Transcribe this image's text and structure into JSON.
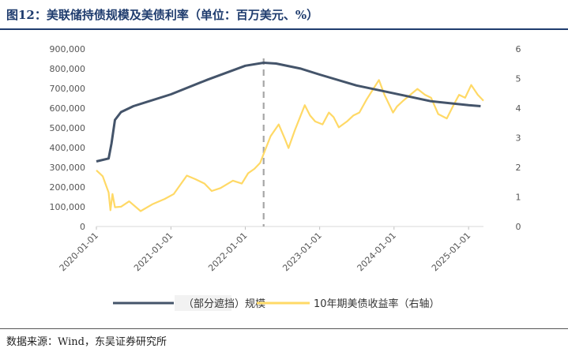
{
  "header": {
    "title": "图12：美联储持债规模及美债利率（单位：百万美元、%）"
  },
  "footer": {
    "source": "数据来源：Wind，东吴证券研究所"
  },
  "colors": {
    "holdings": "#44546a",
    "yield": "#ffd966",
    "title": "#1f3c6e",
    "divider": "#a6a6a6"
  },
  "chart_data": {
    "type": "line",
    "x_tick_labels": [
      "2020-01-01",
      "2021-01-01",
      "2022-01-01",
      "2023-01-01",
      "2024-01-01",
      "2025-01-01"
    ],
    "x_range": [
      "2020-01-01",
      "2025-03-15"
    ],
    "left_axis": {
      "ylim": [
        0,
        900000
      ],
      "ticks": [
        "0",
        "100,000",
        "200,000",
        "300,000",
        "400,000",
        "500,000",
        "600,000",
        "700,000",
        "800,000",
        "900,000"
      ]
    },
    "right_axis": {
      "ylim": [
        0,
        6
      ],
      "ticks": [
        "0",
        "1",
        "2",
        "3",
        "4",
        "5",
        "6"
      ]
    },
    "vertical_marker_x": "2022-04-01",
    "grid": false,
    "legend_position": "bottom",
    "series": [
      {
        "name": "（部分遮挡）规模",
        "axis": "left",
        "x": [
          "2020-01-01",
          "2020-03-01",
          "2020-03-15",
          "2020-04-01",
          "2020-05-01",
          "2020-07-01",
          "2021-01-01",
          "2021-07-01",
          "2022-01-01",
          "2022-04-01",
          "2022-06-01",
          "2022-10-01",
          "2023-01-01",
          "2023-07-01",
          "2024-01-01",
          "2024-07-01",
          "2025-01-01",
          "2025-03-01"
        ],
        "values": [
          330000,
          345000,
          420000,
          540000,
          580000,
          610000,
          670000,
          745000,
          815000,
          830000,
          826000,
          800000,
          770000,
          715000,
          675000,
          635000,
          615000,
          610000
        ]
      },
      {
        "name": "10年期美债收益率（右轴）",
        "axis": "right",
        "x": [
          "2020-01-01",
          "2020-02-01",
          "2020-03-01",
          "2020-03-10",
          "2020-03-20",
          "2020-04-01",
          "2020-05-01",
          "2020-06-10",
          "2020-08-05",
          "2020-10-01",
          "2020-12-01",
          "2021-01-15",
          "2021-03-20",
          "2021-05-01",
          "2021-06-15",
          "2021-07-20",
          "2021-09-01",
          "2021-11-01",
          "2021-12-15",
          "2022-01-15",
          "2022-02-15",
          "2022-03-15",
          "2022-04-01",
          "2022-05-05",
          "2022-06-14",
          "2022-07-15",
          "2022-08-01",
          "2022-09-01",
          "2022-10-20",
          "2022-11-15",
          "2022-12-10",
          "2023-01-15",
          "2023-02-15",
          "2023-03-10",
          "2023-04-05",
          "2023-05-15",
          "2023-06-15",
          "2023-07-15",
          "2023-08-20",
          "2023-10-19",
          "2023-11-15",
          "2023-12-27",
          "2024-01-15",
          "2024-02-15",
          "2024-04-25",
          "2024-06-01",
          "2024-07-01",
          "2024-08-05",
          "2024-09-16",
          "2024-10-15",
          "2024-11-15",
          "2024-12-15",
          "2025-01-14",
          "2025-02-15",
          "2025-03-15"
        ],
        "values": [
          1.9,
          1.7,
          1.15,
          0.55,
          1.1,
          0.65,
          0.67,
          0.85,
          0.52,
          0.75,
          0.93,
          1.1,
          1.72,
          1.6,
          1.45,
          1.2,
          1.3,
          1.55,
          1.45,
          1.8,
          1.95,
          2.15,
          2.45,
          3.05,
          3.45,
          2.95,
          2.65,
          3.25,
          4.1,
          3.75,
          3.55,
          3.45,
          3.85,
          3.7,
          3.35,
          3.55,
          3.75,
          3.85,
          4.3,
          4.95,
          4.45,
          3.85,
          4.05,
          4.25,
          4.65,
          4.45,
          4.35,
          3.8,
          3.65,
          4.05,
          4.45,
          4.35,
          4.78,
          4.45,
          4.25
        ]
      }
    ]
  }
}
